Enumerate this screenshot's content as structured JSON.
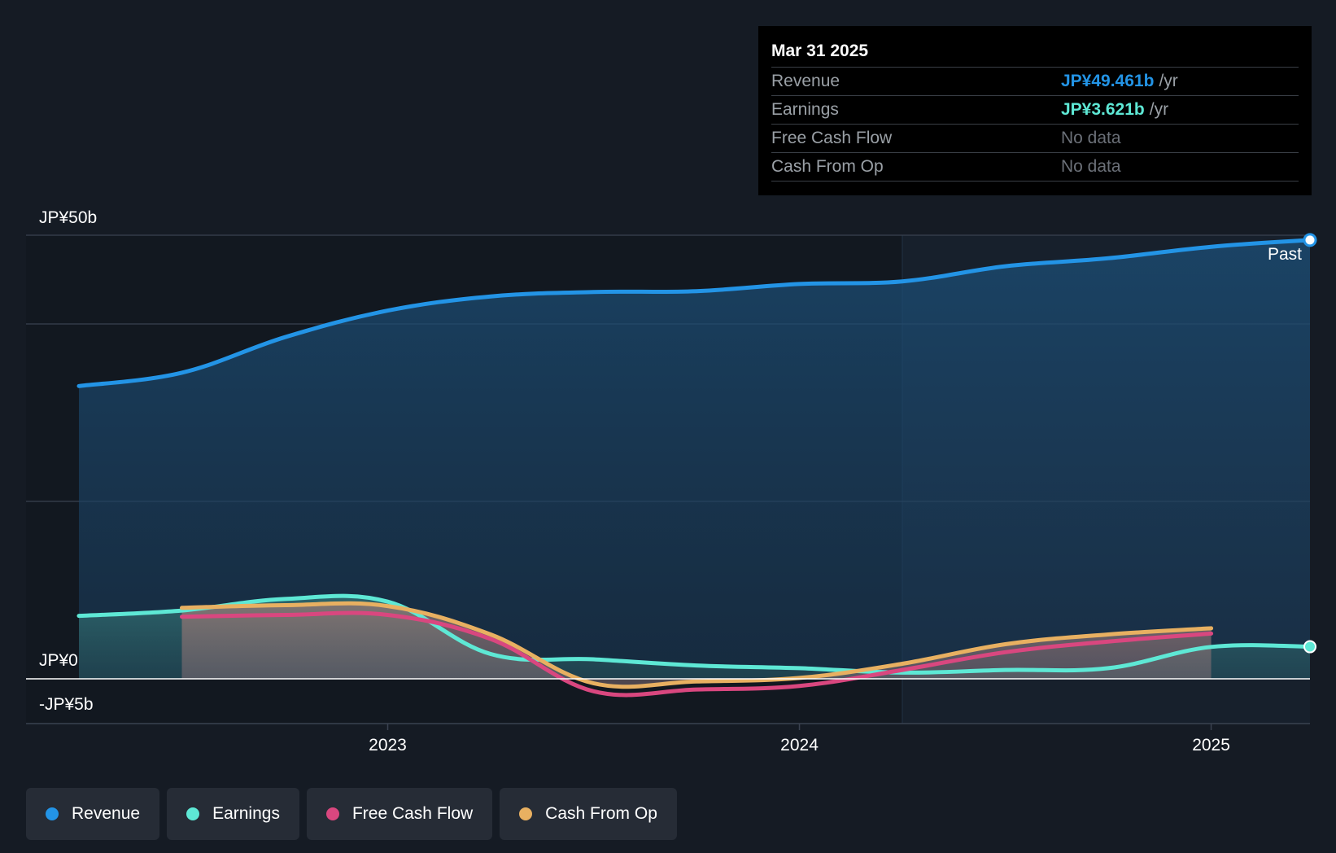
{
  "colors": {
    "background": "#151b24",
    "revenue": "#2394e6",
    "earnings": "#5ee8d5",
    "free_cash_flow": "#d9477f",
    "cash_from_op": "#e8b061",
    "grid": "#3a4250",
    "zero_line": "#ffffff"
  },
  "tooltip": {
    "date": "Mar 31 2025",
    "rows": [
      {
        "label": "Revenue",
        "value": "JP¥49.461b",
        "unit": "/yr",
        "color": "#2394e6"
      },
      {
        "label": "Earnings",
        "value": "JP¥3.621b",
        "unit": "/yr",
        "color": "#5ee8d5"
      },
      {
        "label": "Free Cash Flow",
        "value": "No data"
      },
      {
        "label": "Cash From Op",
        "value": "No data"
      }
    ]
  },
  "past_label": "Past",
  "legend": [
    {
      "label": "Revenue",
      "color": "#2394e6"
    },
    {
      "label": "Earnings",
      "color": "#5ee8d5"
    },
    {
      "label": "Free Cash Flow",
      "color": "#d9477f"
    },
    {
      "label": "Cash From Op",
      "color": "#e8b061"
    }
  ],
  "chart_data": {
    "type": "line",
    "title": "",
    "xlabel": "",
    "ylabel": "",
    "y_unit": "JP¥ billions",
    "ylim": [
      -5,
      50
    ],
    "y_tick_labels": [
      {
        "value": 50,
        "label": "JP¥50b"
      },
      {
        "value": 0,
        "label": "JP¥0"
      },
      {
        "value": -5,
        "label": "-JP¥5b"
      }
    ],
    "gridlines": [
      50,
      40,
      20,
      0
    ],
    "xlim": [
      2022.12,
      2025.24
    ],
    "x_ticks": [
      {
        "value": 2023.0,
        "label": "2023"
      },
      {
        "value": 2024.0,
        "label": "2024"
      },
      {
        "value": 2025.0,
        "label": "2025"
      }
    ],
    "past_region_start": 2024.25,
    "legend_position": "bottom",
    "series": [
      {
        "name": "Revenue",
        "x": [
          2022.25,
          2022.5,
          2022.75,
          2023.0,
          2023.25,
          2023.5,
          2023.75,
          2024.0,
          2024.25,
          2024.5,
          2024.75,
          2025.0,
          2025.24
        ],
        "values": [
          33.0,
          34.5,
          38.5,
          41.5,
          43.1,
          43.6,
          43.7,
          44.5,
          44.8,
          46.5,
          47.4,
          48.7,
          49.461
        ]
      },
      {
        "name": "Earnings",
        "x": [
          2022.25,
          2022.5,
          2022.75,
          2023.0,
          2023.25,
          2023.5,
          2023.75,
          2024.0,
          2024.25,
          2024.5,
          2024.75,
          2025.0,
          2025.24
        ],
        "values": [
          7.1,
          7.7,
          9.0,
          8.7,
          2.8,
          2.2,
          1.5,
          1.2,
          0.7,
          1.0,
          1.2,
          3.6,
          3.621
        ]
      },
      {
        "name": "Free Cash Flow",
        "x": [
          2022.5,
          2022.75,
          2023.0,
          2023.25,
          2023.5,
          2023.75,
          2024.0,
          2024.25,
          2024.5,
          2024.75,
          2025.0
        ],
        "values": [
          7.0,
          7.2,
          7.2,
          4.5,
          -1.4,
          -1.2,
          -0.8,
          1.0,
          3.0,
          4.2,
          5.1
        ]
      },
      {
        "name": "Cash From Op",
        "x": [
          2022.5,
          2022.75,
          2023.0,
          2023.25,
          2023.5,
          2023.75,
          2024.0,
          2024.25,
          2024.5,
          2024.75,
          2025.0
        ],
        "values": [
          8.0,
          8.3,
          8.2,
          5.0,
          -0.5,
          -0.3,
          0.1,
          1.7,
          3.9,
          5.0,
          5.7
        ]
      }
    ]
  }
}
